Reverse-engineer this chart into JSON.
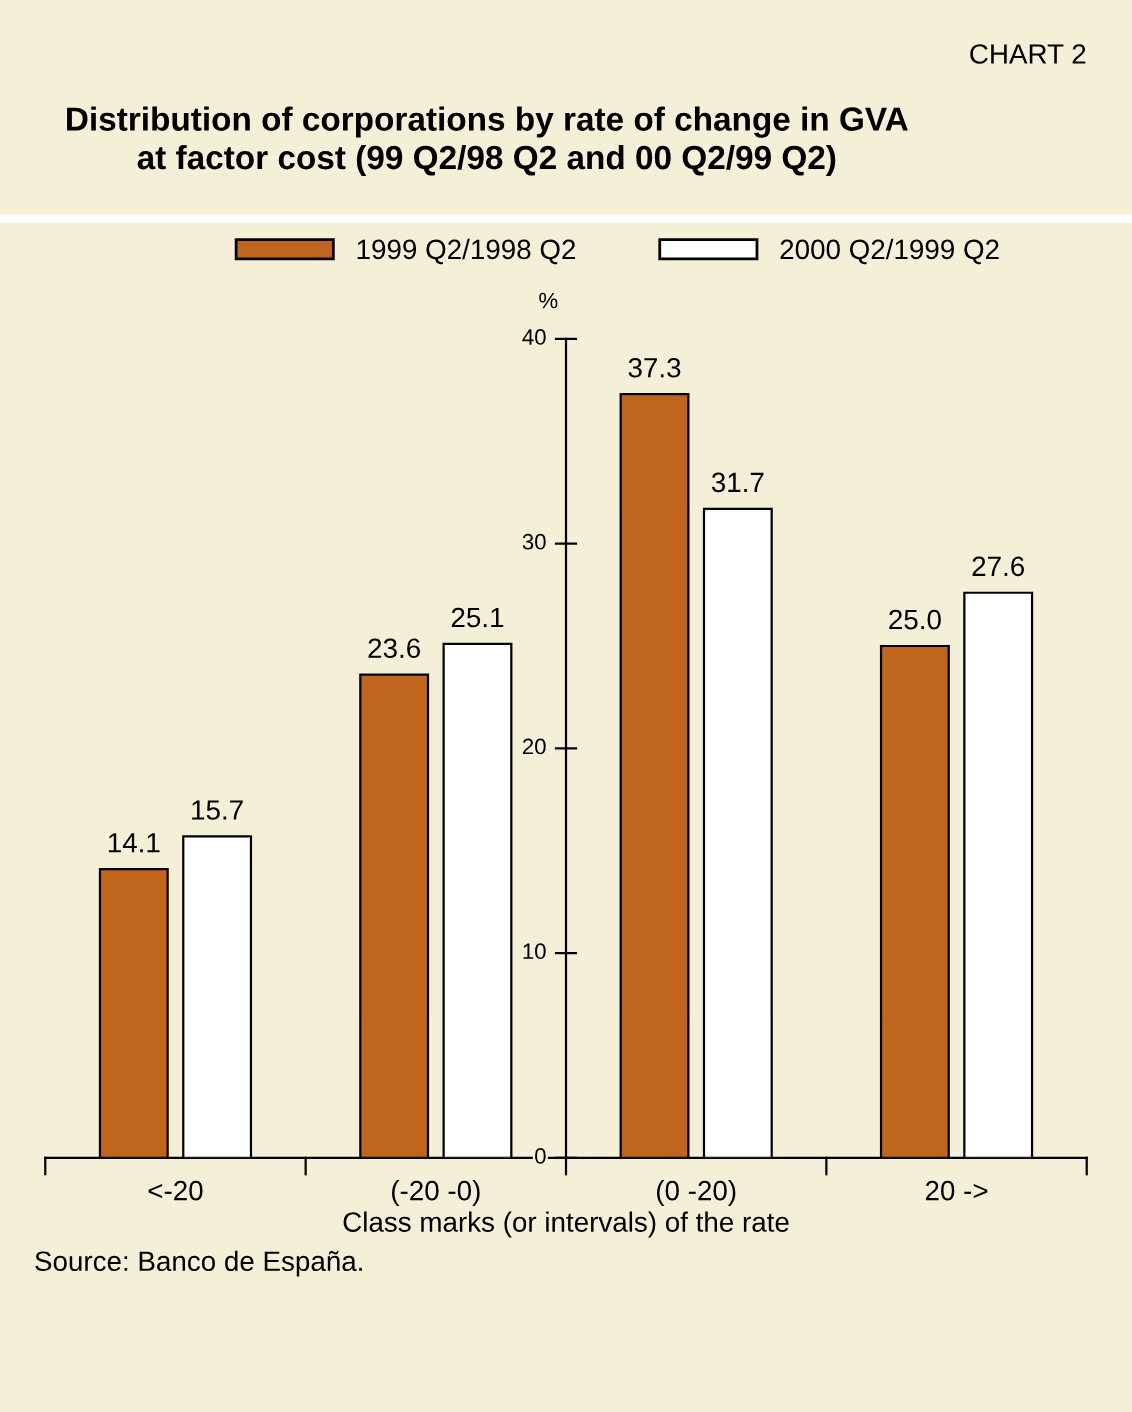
{
  "chart_data": {
    "type": "bar",
    "title": "Distribution of corporations by rate of change in GVA\nat factor cost (99 Q2/98 Q2 and 00 Q2/99 Q2)",
    "subtitle": "CHART 2",
    "ylabel": "%",
    "xlabel": "Class marks (or intervals) of the rate",
    "categories": [
      "<-20",
      "(-20 -0)",
      "(0 -20)",
      "20 ->"
    ],
    "series": [
      {
        "name": "1999 Q2/1998 Q2",
        "color": "#c0651e",
        "values": [
          14.1,
          23.6,
          37.3,
          25.0
        ],
        "value_labels": [
          "14.1",
          "23.6",
          "37.3",
          "25.0"
        ]
      },
      {
        "name": "2000 Q2/1999 Q2",
        "color": "#ffffff",
        "values": [
          15.7,
          25.1,
          31.7,
          27.6
        ],
        "value_labels": [
          "15.7",
          "25.1",
          "31.7",
          "27.6"
        ]
      }
    ],
    "ylim": [
      0,
      40
    ],
    "yticks": [
      0,
      10,
      20,
      30,
      40
    ],
    "grid": false,
    "legend": "top",
    "annotations": [
      "Source: Banco de España."
    ]
  }
}
